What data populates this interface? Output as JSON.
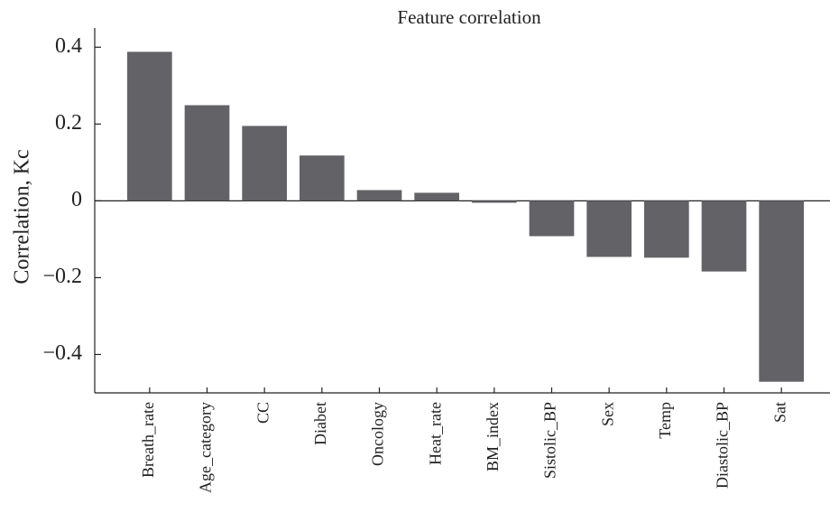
{
  "chart_data": {
    "type": "bar",
    "title": "Feature correlation",
    "y_label": "Correlation, Kc",
    "categories": [
      "Breath_rate",
      "Age_category",
      "CC",
      "Diabet",
      "Oncology",
      "Heat_rate",
      "BM_index",
      "Sistolic_BP",
      "Sex",
      "Temp",
      "Diastolic_BP",
      "Sat"
    ],
    "values": [
      0.388,
      0.249,
      0.195,
      0.118,
      0.028,
      0.021,
      -0.005,
      -0.092,
      -0.146,
      -0.148,
      -0.184,
      -0.471
    ],
    "color": "#636266",
    "ylim": [
      -0.5,
      0.45
    ],
    "yticks": [
      {
        "value": -0.4,
        "label": "−0.4"
      },
      {
        "value": -0.2,
        "label": "−0.2"
      },
      0,
      0.2,
      0.4
    ]
  }
}
